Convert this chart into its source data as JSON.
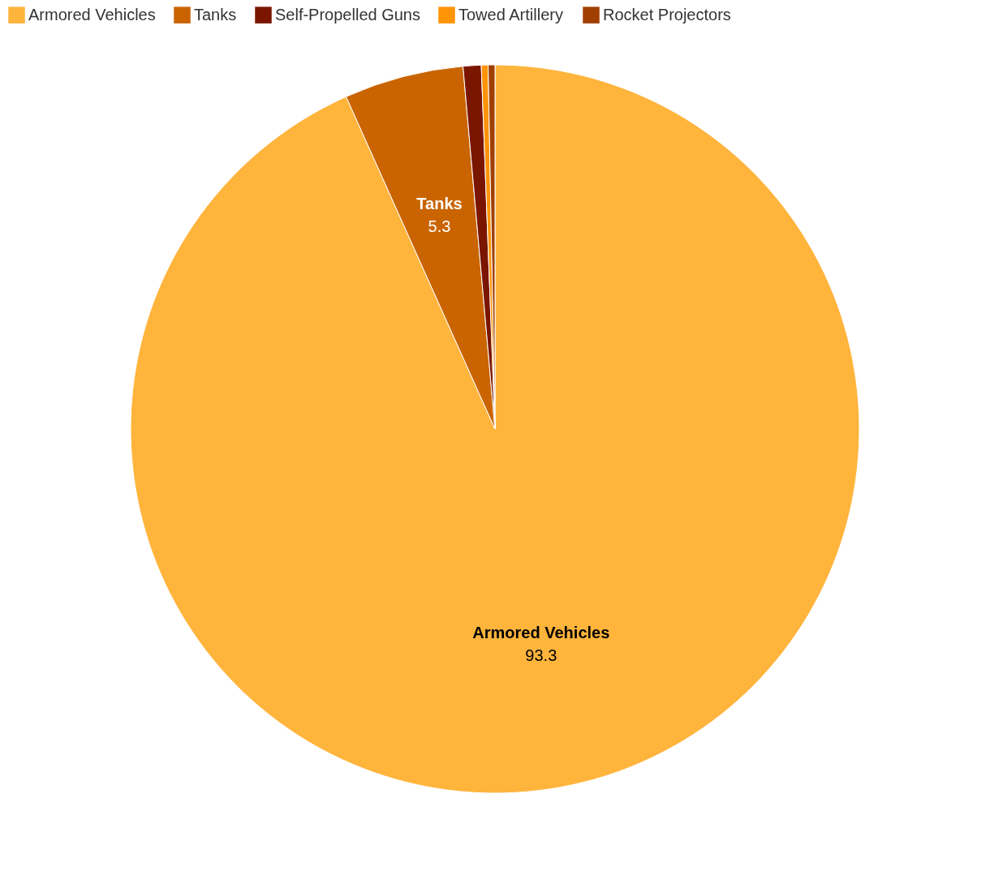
{
  "chart_data": {
    "type": "pie",
    "categories": [
      "Armored Vehicles",
      "Tanks",
      "Self-Propelled Guns",
      "Towed Artillery",
      "Rocket Projectors"
    ],
    "values": [
      93.3,
      5.3,
      0.8,
      0.3,
      0.3
    ],
    "colors": [
      "#ffb43c",
      "#c96400",
      "#7a1500",
      "#ff9408",
      "#a04000"
    ],
    "value_labels": [
      "93.3",
      "5.3",
      null,
      null,
      null
    ],
    "legend": "top left"
  }
}
